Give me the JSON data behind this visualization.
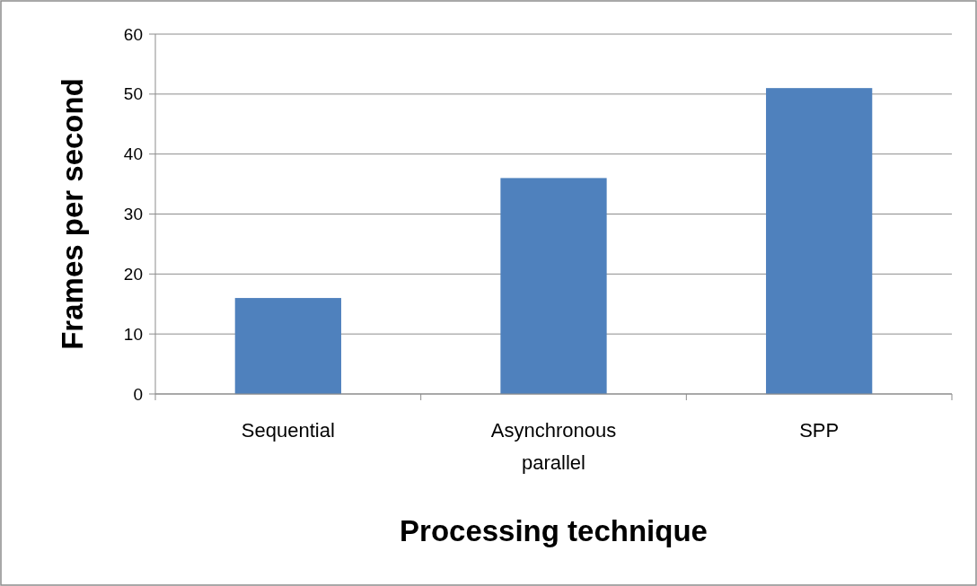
{
  "chart_data": {
    "type": "bar",
    "xlabel": "Processing technique",
    "ylabel": "Frames per second",
    "categories": [
      "Sequential",
      "Asynchronous parallel",
      "SPP"
    ],
    "values": [
      16,
      36,
      51
    ],
    "color": "#4f81bd",
    "ylim": [
      0,
      60
    ],
    "yticks": [
      0,
      10,
      20,
      30,
      40,
      50,
      60
    ],
    "grid": "y"
  }
}
